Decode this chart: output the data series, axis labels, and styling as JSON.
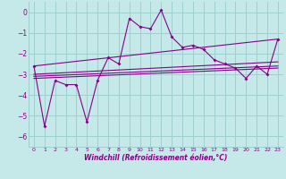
{
  "xlabel": "Windchill (Refroidissement éolien,°C)",
  "background_color": "#c5e8e8",
  "grid_color": "#9fcfcf",
  "line_color": "#880088",
  "xlim": [
    -0.5,
    23.5
  ],
  "ylim": [
    -6.5,
    0.5
  ],
  "xticks": [
    0,
    1,
    2,
    3,
    4,
    5,
    6,
    7,
    8,
    9,
    10,
    11,
    12,
    13,
    14,
    15,
    16,
    17,
    18,
    19,
    20,
    21,
    22,
    23
  ],
  "yticks": [
    0,
    -1,
    -2,
    -3,
    -4,
    -5,
    -6
  ],
  "line1_x": [
    0,
    1,
    2,
    3,
    4,
    5,
    6,
    7,
    8,
    9,
    10,
    11,
    12,
    13,
    14,
    15,
    16,
    17,
    18,
    19,
    20,
    21,
    22,
    23
  ],
  "line1_y": [
    -2.6,
    -5.5,
    -3.3,
    -3.5,
    -3.5,
    -5.3,
    -3.3,
    -2.2,
    -2.5,
    -0.3,
    -0.7,
    -0.8,
    0.1,
    -1.2,
    -1.7,
    -1.6,
    -1.8,
    -2.3,
    -2.5,
    -2.7,
    -3.2,
    -2.6,
    -3.0,
    -1.3
  ],
  "regression_lines": [
    {
      "x": [
        0,
        23
      ],
      "y": [
        -3.2,
        -2.7
      ]
    },
    {
      "x": [
        0,
        23
      ],
      "y": [
        -3.1,
        -2.6
      ]
    },
    {
      "x": [
        0,
        23
      ],
      "y": [
        -3.0,
        -2.4
      ]
    },
    {
      "x": [
        0,
        23
      ],
      "y": [
        -2.6,
        -1.3
      ]
    }
  ]
}
